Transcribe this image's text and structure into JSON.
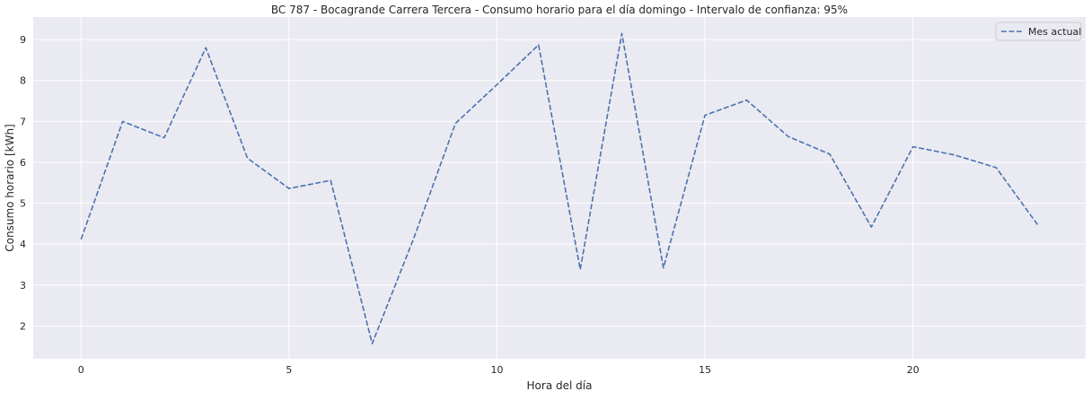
{
  "chart_data": {
    "type": "line",
    "title": "BC 787 - Bocagrande Carrera Tercera - Consumo horario para el día domingo - Intervalo de confianza: 95%",
    "xlabel": "Hora del día",
    "ylabel": "Consumo horario [kWh]",
    "xlim": [
      -1.15,
      24.15
    ],
    "ylim": [
      1.2,
      9.55
    ],
    "xticks": [
      0,
      5,
      10,
      15,
      20
    ],
    "yticks": [
      2,
      3,
      4,
      5,
      6,
      7,
      8,
      9
    ],
    "grid": true,
    "legend_position": "top-right",
    "colors": {
      "background": "#eaeaf2",
      "grid": "#ffffff",
      "series": "#4c72b0",
      "text": "#262626"
    },
    "series": [
      {
        "name": "Mes actual",
        "line_style": "dashed",
        "x": [
          0,
          1,
          2,
          3,
          4,
          5,
          6,
          7,
          8,
          9,
          10,
          11,
          12,
          13,
          14,
          15,
          16,
          17,
          18,
          19,
          20,
          21,
          22,
          23
        ],
        "values": [
          4.12,
          7.0,
          6.6,
          8.8,
          6.1,
          5.36,
          5.56,
          1.57,
          4.15,
          6.95,
          7.9,
          8.87,
          3.38,
          9.15,
          3.42,
          7.15,
          7.52,
          6.63,
          6.2,
          4.42,
          6.38,
          6.18,
          5.87,
          4.47
        ]
      }
    ]
  }
}
